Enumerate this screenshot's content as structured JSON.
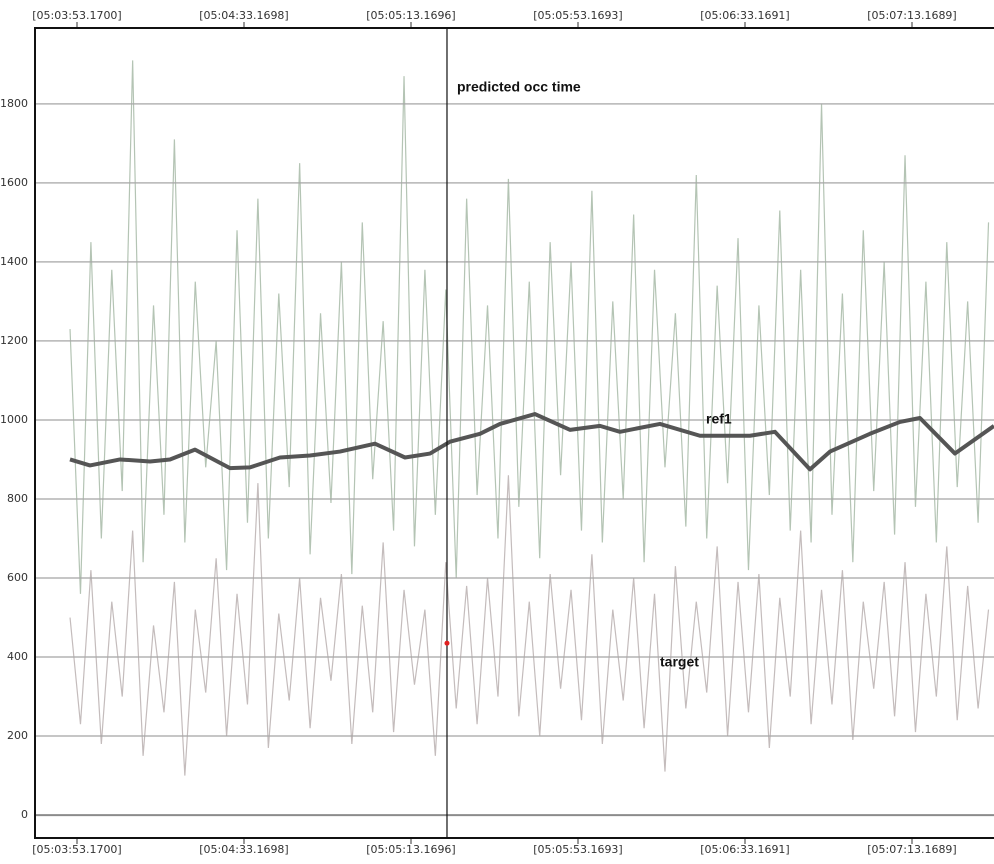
{
  "chart_data": {
    "type": "line",
    "x": [
      18231.5,
      18234,
      18236.5,
      18239,
      18241.5,
      18244,
      18246.5,
      18249,
      18251.5,
      18254,
      18256.5,
      18259,
      18261.5,
      18264,
      18266.5,
      18269,
      18271.5,
      18274,
      18276.5,
      18279,
      18281.5,
      18284,
      18286.5,
      18289,
      18291.5,
      18294,
      18296.5,
      18299,
      18301.5,
      18304,
      18306.5,
      18309,
      18311.5,
      18314,
      18316.5,
      18319,
      18321.5,
      18324,
      18326.5,
      18329,
      18331.5,
      18334,
      18336.5,
      18339,
      18341.5,
      18344,
      18346.5,
      18349,
      18351.5,
      18354,
      18356.5,
      18359,
      18361.5,
      18364,
      18366.5,
      18369,
      18371.5,
      18374,
      18376.5,
      18379,
      18381.5,
      18384,
      18386.5,
      18389,
      18391.5,
      18394,
      18396.5,
      18399,
      18401.5,
      18404,
      18406.5,
      18409,
      18411.5,
      18414,
      18416.5,
      18419,
      18421.5,
      18424,
      18426.5,
      18429,
      18431.5,
      18434,
      18436.5,
      18439,
      18441.5,
      18444,
      18446.5,
      18449,
      18451.5
    ],
    "series": [
      {
        "name": "ref1",
        "color": "#b4c4b4",
        "values": [
          1230,
          560,
          1450,
          700,
          1380,
          820,
          1910,
          640,
          1290,
          760,
          1710,
          690,
          1350,
          880,
          1200,
          620,
          1480,
          740,
          1560,
          700,
          1320,
          830,
          1650,
          660,
          1270,
          790,
          1400,
          610,
          1500,
          850,
          1250,
          720,
          1870,
          680,
          1380,
          760,
          1330,
          600,
          1560,
          810,
          1290,
          700,
          1610,
          780,
          1350,
          650,
          1450,
          860,
          1400,
          720,
          1580,
          690,
          1300,
          800,
          1520,
          640,
          1380,
          880,
          1270,
          730,
          1620,
          700,
          1340,
          840,
          1460,
          620,
          1290,
          810,
          1530,
          720,
          1380,
          690,
          1800,
          760,
          1320,
          640,
          1480,
          820,
          1400,
          710,
          1670,
          780,
          1350,
          690,
          1450,
          830,
          1300,
          740,
          1500
        ]
      },
      {
        "name": "target",
        "color": "#c4bcbc",
        "values": [
          500,
          230,
          620,
          180,
          540,
          300,
          720,
          150,
          480,
          260,
          590,
          100,
          520,
          310,
          650,
          200,
          560,
          280,
          840,
          170,
          510,
          290,
          600,
          220,
          550,
          340,
          610,
          180,
          530,
          260,
          690,
          210,
          570,
          330,
          520,
          150,
          640,
          270,
          580,
          230,
          600,
          300,
          860,
          250,
          540,
          200,
          610,
          320,
          570,
          240,
          660,
          180,
          520,
          290,
          600,
          220,
          560,
          110,
          630,
          270,
          540,
          310,
          680,
          200,
          590,
          260,
          610,
          170,
          550,
          300,
          720,
          230,
          570,
          280,
          620,
          190,
          540,
          320,
          590,
          250,
          640,
          210,
          560,
          300,
          680,
          240,
          580,
          270,
          520
        ]
      }
    ],
    "trend": {
      "color": "#555555",
      "x": [
        18231.49,
        18236.28,
        18243.47,
        18250.65,
        18255.44,
        18261.43,
        18269.81,
        18274.6,
        18281.79,
        18288.98,
        18296.16,
        18304.54,
        18311.73,
        18317.72,
        18322.51,
        18329.69,
        18334.48,
        18342.86,
        18351.24,
        18358.43,
        18363.22,
        18372.8,
        18382.38,
        18387.17,
        18394.36,
        18400.34,
        18408.73,
        18413.52,
        18423.1,
        18430.28,
        18435.07,
        18443.46,
        18452.8
      ],
      "values": [
        900,
        885,
        900,
        895,
        900,
        925,
        878,
        880,
        905,
        910,
        920,
        940,
        905,
        915,
        945,
        965,
        990,
        1015,
        975,
        985,
        970,
        990,
        960,
        960,
        960,
        970,
        875,
        920,
        965,
        995,
        1005,
        915,
        985
      ]
    },
    "marker": {
      "label": "predicted occ time",
      "x": 18321.79
    },
    "point": {
      "x": 18321.79,
      "y": 435,
      "color": "#e02020"
    },
    "annotations": [
      "ref1",
      "target"
    ],
    "xlim": [
      18223.11,
      18452.81
    ],
    "xticks": [
      {
        "value": 18233.17,
        "label": "[05:03:53.1700]"
      },
      {
        "value": 18273.1698,
        "label": "[05:04:33.1698]"
      },
      {
        "value": 18313.1696,
        "label": "[05:05:13.1696]"
      },
      {
        "value": 18353.1693,
        "label": "[05:05:53.1693]"
      },
      {
        "value": 18393.1691,
        "label": "[05:06:33.1691]"
      },
      {
        "value": 18433.1689,
        "label": "[05:07:13.1689]"
      }
    ],
    "ylim": [
      -58,
      1992
    ],
    "yticks": [
      0,
      200,
      400,
      600,
      800,
      1000,
      1200,
      1400,
      1600,
      1800
    ],
    "grid": true
  }
}
